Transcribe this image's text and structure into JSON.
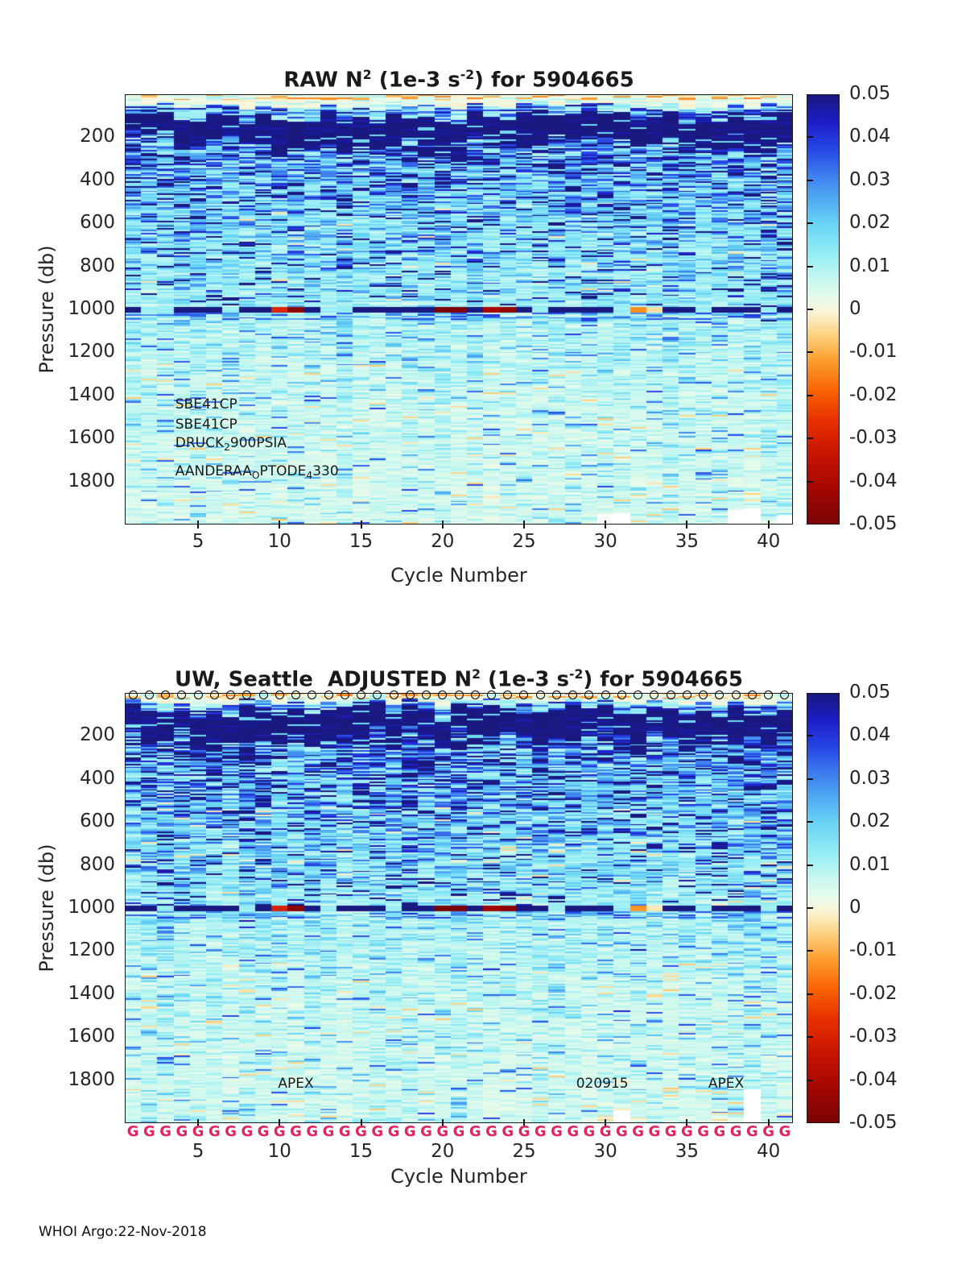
{
  "footer": {
    "text": "WHOI Argo:22-Nov-2018"
  },
  "colormap": {
    "min": -0.05,
    "max": 0.05,
    "no_data_color": "#ffffff",
    "stops": [
      [
        0.0,
        "#7a0403"
      ],
      [
        0.08,
        "#a30603"
      ],
      [
        0.16,
        "#c81302"
      ],
      [
        0.24,
        "#e63000"
      ],
      [
        0.31,
        "#f96203"
      ],
      [
        0.38,
        "#fc9d2c"
      ],
      [
        0.44,
        "#fdd17f"
      ],
      [
        0.49,
        "#fbf2d2"
      ],
      [
        0.52,
        "#ecfbe9"
      ],
      [
        0.57,
        "#c6f7f0"
      ],
      [
        0.63,
        "#93ecf5"
      ],
      [
        0.7,
        "#67d3f4"
      ],
      [
        0.76,
        "#4fa8f2"
      ],
      [
        0.82,
        "#3b78ee"
      ],
      [
        0.88,
        "#2441e4"
      ],
      [
        0.94,
        "#1d1dc4"
      ],
      [
        1.0,
        "#191980"
      ]
    ]
  },
  "chart_data": [
    {
      "type": "heatmap",
      "title": "RAW N^2 (1e-3 s^-2) for 5904665",
      "title_parts": [
        {
          "t": "RAW N"
        },
        {
          "sup": "2"
        },
        {
          "t": " (1e-3 s"
        },
        {
          "sup": "-2"
        },
        {
          "t": ") for 5904665"
        }
      ],
      "xlabel": "Cycle Number",
      "ylabel": "Pressure (db)",
      "x_range": [
        1,
        41
      ],
      "x_ticks": [
        5,
        10,
        15,
        20,
        25,
        30,
        35,
        40
      ],
      "y_range": [
        0,
        2000
      ],
      "y_ticks": [
        200,
        400,
        600,
        800,
        1000,
        1200,
        1400,
        1600,
        1800
      ],
      "colorbar_ticks": [
        0.05,
        0.04,
        0.03,
        0.02,
        0.01,
        0,
        -0.01,
        -0.02,
        -0.03,
        -0.04,
        -0.05
      ],
      "annotations": [
        {
          "c": 3.6,
          "p": 1441,
          "align": "left",
          "parts": [
            {
              "t": "SBE41CP"
            }
          ]
        },
        {
          "c": 3.6,
          "p": 1535,
          "align": "left",
          "parts": [
            {
              "t": "SBE41CP"
            }
          ]
        },
        {
          "c": 3.6,
          "p": 1624,
          "align": "left",
          "parts": [
            {
              "t": "DRUCK"
            },
            {
              "sub": "2"
            },
            {
              "t": "900PSIA"
            }
          ]
        },
        {
          "c": 3.6,
          "p": 1755,
          "align": "left",
          "parts": [
            {
              "t": "AANDERAA"
            },
            {
              "sub": "O"
            },
            {
              "t": "PTODE"
            },
            {
              "sub": "4"
            },
            {
              "t": "330"
            }
          ]
        }
      ],
      "seed": 466501,
      "profile": [
        [
          0,
          0.003
        ],
        [
          40,
          0.004
        ],
        [
          90,
          0.045
        ],
        [
          160,
          0.042
        ],
        [
          250,
          0.032
        ],
        [
          400,
          0.026
        ],
        [
          600,
          0.02
        ],
        [
          800,
          0.016
        ],
        [
          950,
          0.013
        ],
        [
          1020,
          0.0105
        ],
        [
          1150,
          0.009
        ],
        [
          1300,
          0.0075
        ],
        [
          1600,
          0.006
        ],
        [
          2000,
          0.0055
        ]
      ],
      "mld": {
        "top_min": 65,
        "top_max": 140,
        "thick_min": 80,
        "thick_max": 170
      },
      "noise": {
        "sigma": 0.5,
        "navy_prob": 0.07,
        "cyan_prob": 0.16,
        "fleck_prob": 0.05,
        "peach_prob": 0.02
      },
      "line_1000": {
        "pressure": 1000,
        "half_width_db": 13,
        "value": 0.052,
        "light_value": 0.012,
        "red_segments": {
          "10": -0.03,
          "11": -0.047,
          "20": -0.052,
          "21": -0.05,
          "23": -0.042,
          "24": -0.046,
          "32": -0.013,
          "33": -0.003
        },
        "light_cycles": [
          2,
          3,
          7,
          13,
          14,
          26,
          31,
          36,
          40
        ]
      },
      "no_data_gaps": [
        {
          "c": 30,
          "p_from": 1950
        },
        {
          "c": 31,
          "p_from": 1945
        },
        {
          "c": 38,
          "p_from": 1930
        },
        {
          "c": 39,
          "p_from": 1925
        },
        {
          "c": 41,
          "p_from": 1955
        }
      ]
    },
    {
      "type": "heatmap",
      "title": "UW, Seattle  ADJUSTED N^2 (1e-3 s^-2) for 5904665",
      "title_parts": [
        {
          "t": "UW, Seattle  ADJUSTED N"
        },
        {
          "sup": "2"
        },
        {
          "t": " (1e-3 s"
        },
        {
          "sup": "-2"
        },
        {
          "t": ") for 5904665"
        }
      ],
      "xlabel": "Cycle Number",
      "ylabel": "Pressure (db)",
      "x_range": [
        1,
        41
      ],
      "x_ticks": [
        5,
        10,
        15,
        20,
        25,
        30,
        35,
        40
      ],
      "y_range": [
        0,
        2000
      ],
      "y_ticks": [
        200,
        400,
        600,
        800,
        1000,
        1200,
        1400,
        1600,
        1800
      ],
      "colorbar_ticks": [
        0.05,
        0.04,
        0.03,
        0.02,
        0.01,
        0,
        -0.01,
        -0.02,
        -0.03,
        -0.04,
        -0.05
      ],
      "annotations": [
        {
          "c": 11.0,
          "p": 1816,
          "align": "center",
          "parts": [
            {
              "t": "APEX"
            }
          ]
        },
        {
          "c": 29.8,
          "p": 1816,
          "align": "center",
          "parts": [
            {
              "t": "020915"
            }
          ]
        },
        {
          "c": 37.4,
          "p": 1816,
          "align": "center",
          "parts": [
            {
              "t": "APEX"
            }
          ]
        }
      ],
      "markers": {
        "top_row": {
          "symbol": "o",
          "count": 41,
          "color": "#000000"
        },
        "bottom_row": {
          "symbol": "G",
          "count": 41,
          "color": "#e0245e"
        }
      },
      "seed": 20915,
      "profile": [
        [
          0,
          0.003
        ],
        [
          40,
          0.004
        ],
        [
          90,
          0.045
        ],
        [
          160,
          0.042
        ],
        [
          250,
          0.032
        ],
        [
          400,
          0.026
        ],
        [
          600,
          0.02
        ],
        [
          800,
          0.016
        ],
        [
          950,
          0.013
        ],
        [
          1020,
          0.0105
        ],
        [
          1150,
          0.009
        ],
        [
          1300,
          0.0075
        ],
        [
          1600,
          0.006
        ],
        [
          2000,
          0.0055
        ]
      ],
      "mld": {
        "top_min": 45,
        "top_max": 120,
        "thick_min": 90,
        "thick_max": 180
      },
      "noise": {
        "sigma": 0.5,
        "navy_prob": 0.07,
        "cyan_prob": 0.16,
        "fleck_prob": 0.05,
        "peach_prob": 0.02
      },
      "line_1000": {
        "pressure": 1000,
        "half_width_db": 13,
        "value": 0.052,
        "light_value": 0.012,
        "red_segments": {
          "10": -0.03,
          "11": -0.047,
          "20": -0.052,
          "21": -0.05,
          "23": -0.042,
          "24": -0.046,
          "32": -0.013,
          "33": -0.003
        },
        "light_cycles": [
          3,
          8,
          13,
          17,
          27,
          31,
          36,
          40
        ]
      },
      "no_data_gaps": [
        {
          "c": 31,
          "p_from": 1935
        },
        {
          "c": 39,
          "p_from": 1840
        }
      ]
    }
  ]
}
